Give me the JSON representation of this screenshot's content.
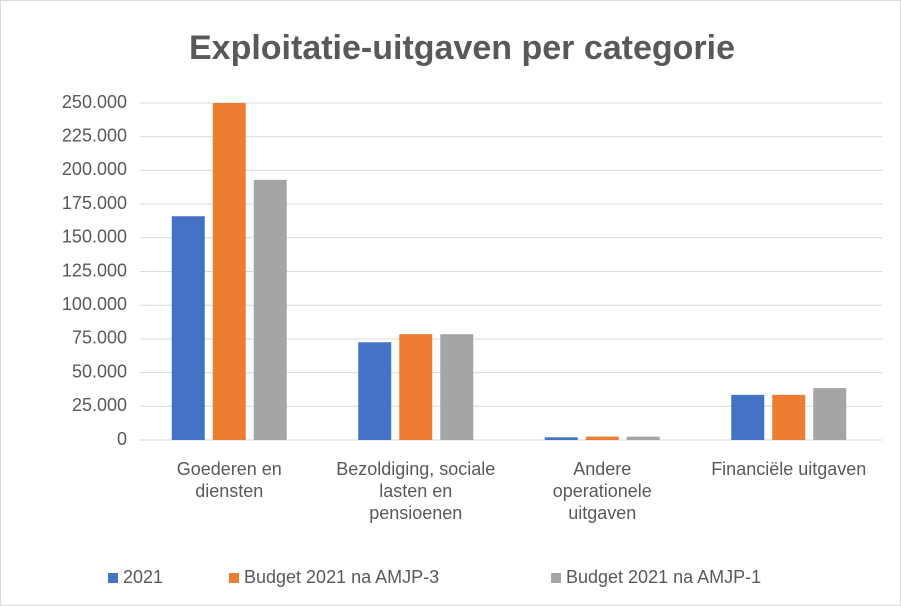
{
  "chart_data": {
    "type": "bar",
    "title": "Exploitatie-uitgaven per categorie",
    "categories": [
      "Goederen en diensten",
      "Bezoldiging, sociale lasten en pensioenen",
      "Andere operationele uitgaven",
      "Financiële uitgaven"
    ],
    "series": [
      {
        "name": "2021",
        "color": "#4472c4",
        "values": [
          166000,
          72500,
          2000,
          33500
        ]
      },
      {
        "name": "Budget 2021 na AMJP-3",
        "color": "#ed7d31",
        "values": [
          250000,
          78500,
          2500,
          33500
        ]
      },
      {
        "name": "Budget 2021 na AMJP-1",
        "color": "#a5a5a5",
        "values": [
          193000,
          78500,
          2500,
          38500
        ]
      }
    ],
    "ylim": [
      0,
      250000
    ],
    "yticks": [
      0,
      {
        "value": 25000,
        "label": "25.000"
      },
      {
        "value": 50000,
        "label": "50.000"
      },
      {
        "value": 75000,
        "label": "75.000"
      },
      {
        "value": 100000,
        "label": "100.000"
      },
      {
        "value": 125000,
        "label": "125.000"
      },
      {
        "value": 150000,
        "label": "150.000"
      },
      {
        "value": 175000,
        "label": "175.000"
      },
      {
        "value": 200000,
        "label": "200.000"
      },
      {
        "value": 225000,
        "label": "225.000"
      },
      {
        "value": 250000,
        "label": "250.000"
      }
    ],
    "grid": true,
    "legend": "bottom"
  }
}
